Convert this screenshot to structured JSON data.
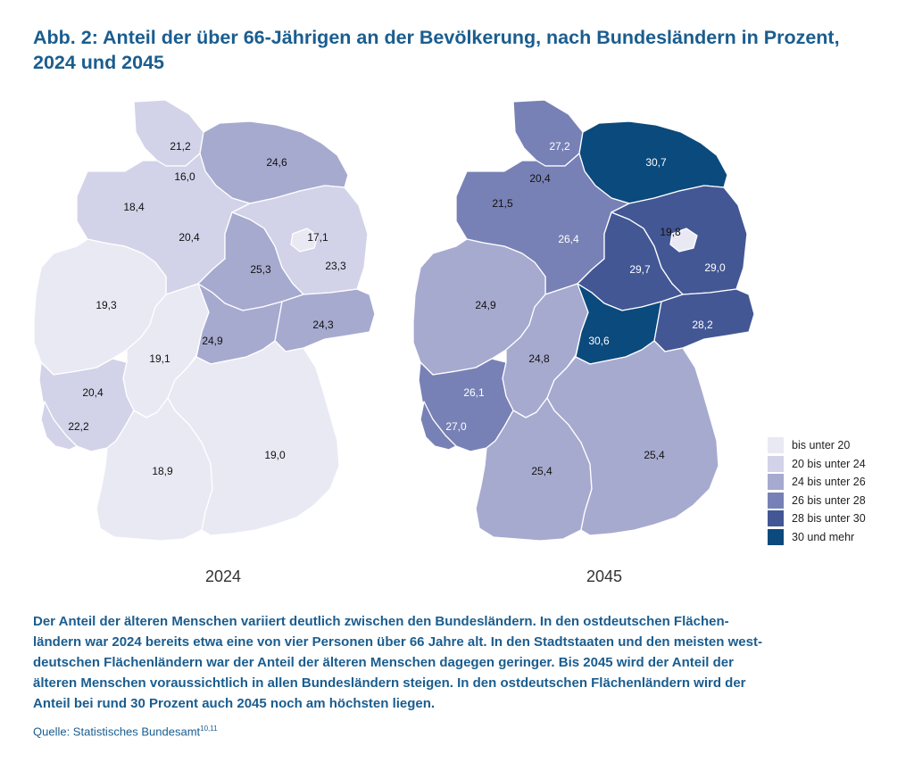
{
  "title": {
    "line1": "Abb. 2: Anteil der über 66-Jährigen an der Bevölkerung, nach Bundesländern in Prozent,",
    "line2": "2024 und 2045"
  },
  "maps": [
    {
      "year": "2024",
      "regions": [
        {
          "name": "Schleswig-Holstein",
          "value": "21,2",
          "cls": "c20"
        },
        {
          "name": "Hamburg",
          "value": "16,0",
          "cls": "c0"
        },
        {
          "name": "Mecklenburg-Vorpommern",
          "value": "24,6",
          "cls": "c24"
        },
        {
          "name": "Bremen",
          "value": "",
          "cls": "c0"
        },
        {
          "name": "Niedersachsen",
          "value": "20,4",
          "cls": "c20"
        },
        {
          "name": "Brandenburg",
          "value": "23,3",
          "cls": "c20"
        },
        {
          "name": "Berlin",
          "value": "17,1",
          "cls": "c0"
        },
        {
          "name": "Sachsen-Anhalt",
          "value": "25,3",
          "cls": "c24"
        },
        {
          "name": "Nordrhein-Westfalen",
          "value": "19,3",
          "cls": "c0"
        },
        {
          "name": "Hessen",
          "value": "19,1",
          "cls": "c0"
        },
        {
          "name": "Thüringen",
          "value": "24,9",
          "cls": "c24"
        },
        {
          "name": "Sachsen",
          "value": "24,3",
          "cls": "c24"
        },
        {
          "name": "Rheinland-Pfalz",
          "value": "20,4",
          "cls": "c20"
        },
        {
          "name": "Saarland",
          "value": "22,2",
          "cls": "c20"
        },
        {
          "name": "Baden-Württemberg",
          "value": "18,9",
          "cls": "c0"
        },
        {
          "name": "Bayern",
          "value": "19,0",
          "cls": "c0"
        }
      ],
      "extra_labels": [
        {
          "name": "Bremen",
          "value": "18,4"
        }
      ]
    },
    {
      "year": "2045",
      "regions": [
        {
          "name": "Schleswig-Holstein",
          "value": "27,2",
          "cls": "c26"
        },
        {
          "name": "Hamburg",
          "value": "20,4",
          "cls": "c20"
        },
        {
          "name": "Mecklenburg-Vorpommern",
          "value": "30,7",
          "cls": "c30"
        },
        {
          "name": "Bremen",
          "value": "21,5",
          "cls": "c20"
        },
        {
          "name": "Niedersachsen",
          "value": "26,4",
          "cls": "c26"
        },
        {
          "name": "Brandenburg",
          "value": "29,0",
          "cls": "c28"
        },
        {
          "name": "Berlin",
          "value": "19,8",
          "cls": "c0"
        },
        {
          "name": "Sachsen-Anhalt",
          "value": "29,7",
          "cls": "c28"
        },
        {
          "name": "Nordrhein-Westfalen",
          "value": "24,9",
          "cls": "c24"
        },
        {
          "name": "Hessen",
          "value": "24,8",
          "cls": "c24"
        },
        {
          "name": "Thüringen",
          "value": "30,6",
          "cls": "c30"
        },
        {
          "name": "Sachsen",
          "value": "28,2",
          "cls": "c28"
        },
        {
          "name": "Rheinland-Pfalz",
          "value": "26,1",
          "cls": "c26"
        },
        {
          "name": "Saarland",
          "value": "27,0",
          "cls": "c26"
        },
        {
          "name": "Baden-Württemberg",
          "value": "25,4",
          "cls": "c24"
        },
        {
          "name": "Bayern",
          "value": "25,4",
          "cls": "c24"
        }
      ],
      "extra_labels": []
    }
  ],
  "legend": [
    {
      "label": "bis unter 20",
      "color": "#e9e9f4"
    },
    {
      "label": "20 bis unter 24",
      "color": "#d2d3e8"
    },
    {
      "label": "24 bis unter 26",
      "color": "#a7aacf"
    },
    {
      "label": "26 bis unter 28",
      "color": "#7881b5"
    },
    {
      "label": "28 bis unter 30",
      "color": "#435795"
    },
    {
      "label": "30 und mehr",
      "color": "#0b4a7c"
    }
  ],
  "colors": {
    "c0": "#e9e9f4",
    "c20": "#d2d3e8",
    "c24": "#a7aacf",
    "c26": "#7881b5",
    "c28": "#435795",
    "c30": "#0b4a7c",
    "title": "#1a5d8f"
  },
  "description": [
    "Der Anteil der älteren Menschen variiert deutlich zwischen den Bundesländern. In den ostdeutschen Flächen-",
    "ländern war 2024 bereits etwa eine von vier Personen über 66 Jahre alt. In den Stadtstaaten und den meisten west-",
    "deutschen Flächenländern war der Anteil der älteren Menschen dagegen geringer. Bis 2045 wird der Anteil der",
    "älteren Menschen voraussichtlich in allen Bundesländern steigen. In den ostdeutschen Flächenländern wird der",
    "Anteil bei rund 30 Prozent auch 2045 noch am höchsten liegen."
  ],
  "source": {
    "text": "Quelle: Statistisches Bundesamt",
    "footnote": "10,11"
  }
}
